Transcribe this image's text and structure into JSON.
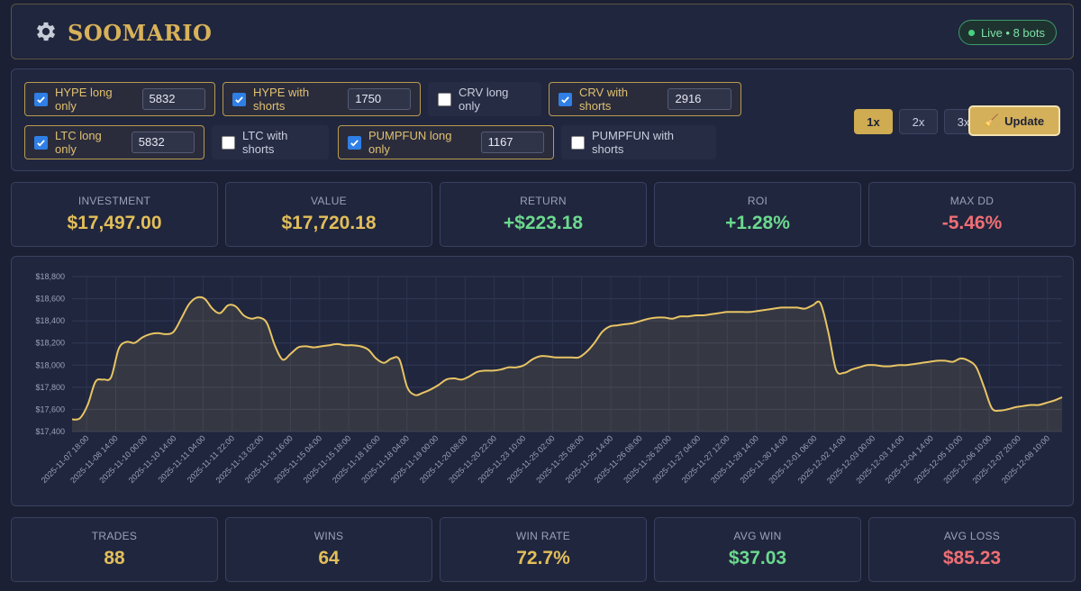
{
  "header": {
    "title": "SOOMARIO",
    "status": "Live • 8 bots",
    "gear_icon": "gear-icon"
  },
  "bots": [
    {
      "label": "HYPE long only",
      "checked": true,
      "value": "5832"
    },
    {
      "label": "HYPE with shorts",
      "checked": true,
      "value": "1750"
    },
    {
      "label": "CRV long only",
      "checked": false,
      "value": null
    },
    {
      "label": "CRV with shorts",
      "checked": true,
      "value": "2916"
    },
    {
      "label": "LTC long only",
      "checked": true,
      "value": "5832"
    },
    {
      "label": "LTC with shorts",
      "checked": false,
      "value": null
    },
    {
      "label": "PUMPFUN long only",
      "checked": true,
      "value": "1167"
    },
    {
      "label": "PUMPFUN with shorts",
      "checked": false,
      "value": null
    }
  ],
  "leverage": {
    "options": [
      "1x",
      "2x",
      "3x"
    ],
    "selected": "1x"
  },
  "update_button": {
    "label": "Update",
    "icon": "broom-icon"
  },
  "summary": [
    {
      "label": "INVESTMENT",
      "value": "$17,497.00",
      "tone": "gold"
    },
    {
      "label": "VALUE",
      "value": "$17,720.18",
      "tone": "gold"
    },
    {
      "label": "RETURN",
      "value": "+$223.18",
      "tone": "green"
    },
    {
      "label": "ROI",
      "value": "+1.28%",
      "tone": "green"
    },
    {
      "label": "MAX DD",
      "value": "-5.46%",
      "tone": "red"
    }
  ],
  "stats": [
    {
      "label": "TRADES",
      "value": "88",
      "tone": "gold"
    },
    {
      "label": "WINS",
      "value": "64",
      "tone": "gold"
    },
    {
      "label": "WIN RATE",
      "value": "72.7%",
      "tone": "gold"
    },
    {
      "label": "AVG WIN",
      "value": "$37.03",
      "tone": "green"
    },
    {
      "label": "AVG LOSS",
      "value": "$85.23",
      "tone": "red"
    }
  ],
  "colors": {
    "accent": "#d4b05a",
    "positive": "#6bd98e",
    "negative": "#ef6f75",
    "line": "#e8c464"
  },
  "chart_data": {
    "type": "area",
    "title": "",
    "xlabel": "",
    "ylabel": "",
    "ylim": [
      17400,
      18800
    ],
    "yticks": [
      "$17,400",
      "$17,600",
      "$17,800",
      "$18,000",
      "$18,200",
      "$18,400",
      "$18,600",
      "$18,800"
    ],
    "ytick_values": [
      17400,
      17600,
      17800,
      18000,
      18200,
      18400,
      18600,
      18800
    ],
    "xticks": [
      "2025-11-07 18:00",
      "2025-11-08 14:00",
      "2025-11-10 00:00",
      "2025-11-10 14:00",
      "2025-11-11 04:00",
      "2025-11-11 22:00",
      "2025-11-13 02:00",
      "2025-11-13 16:00",
      "2025-11-15 04:00",
      "2025-11-15 18:00",
      "2025-11-18 16:00",
      "2025-11-18 04:00",
      "2025-11-19 00:00",
      "2025-11-20 08:00",
      "2025-11-20 22:00",
      "2025-11-23 10:00",
      "2025-11-25 02:00",
      "2025-11-25 08:00",
      "2025-11-25 14:00",
      "2025-11-26 08:00",
      "2025-11-26 20:00",
      "2025-11-27 04:00",
      "2025-11-27 12:00",
      "2025-11-28 14:00",
      "2025-11-30 14:00",
      "2025-12-01 06:00",
      "2025-12-02 14:00",
      "2025-12-03 00:00",
      "2025-12-03 14:00",
      "2025-12-04 14:00",
      "2025-12-05 10:00",
      "2025-12-06 10:00",
      "2025-12-07 20:00",
      "2025-12-08 10:00"
    ],
    "grid": true,
    "legend": "none",
    "series": [
      {
        "values": [
          17510,
          17520,
          17640,
          17850,
          17870,
          17890,
          18150,
          18210,
          18200,
          18250,
          18280,
          18290,
          18280,
          18300,
          18420,
          18550,
          18610,
          18600,
          18510,
          18470,
          18540,
          18530,
          18450,
          18420,
          18430,
          18380,
          18180,
          18050,
          18100,
          18160,
          18170,
          18160,
          18170,
          18180,
          18190,
          18180,
          18180,
          18170,
          18140,
          18060,
          18020,
          18060,
          18050,
          17800,
          17730,
          17750,
          17780,
          17820,
          17870,
          17880,
          17870,
          17900,
          17940,
          17950,
          17950,
          17960,
          17980,
          17980,
          18000,
          18050,
          18080,
          18080,
          18070,
          18070,
          18070,
          18070,
          18120,
          18200,
          18300,
          18350,
          18360,
          18370,
          18380,
          18400,
          18420,
          18430,
          18430,
          18420,
          18440,
          18440,
          18450,
          18450,
          18460,
          18470,
          18480,
          18480,
          18480,
          18480,
          18490,
          18500,
          18510,
          18520,
          18520,
          18520,
          18510,
          18540,
          18560,
          18300,
          17960,
          17930,
          17960,
          17980,
          18000,
          18000,
          17990,
          17990,
          18000,
          18000,
          18010,
          18020,
          18030,
          18040,
          18040,
          18030,
          18060,
          18040,
          17980,
          17800,
          17610,
          17590,
          17600,
          17620,
          17630,
          17640,
          17640,
          17660,
          17680,
          17710
        ]
      }
    ]
  }
}
